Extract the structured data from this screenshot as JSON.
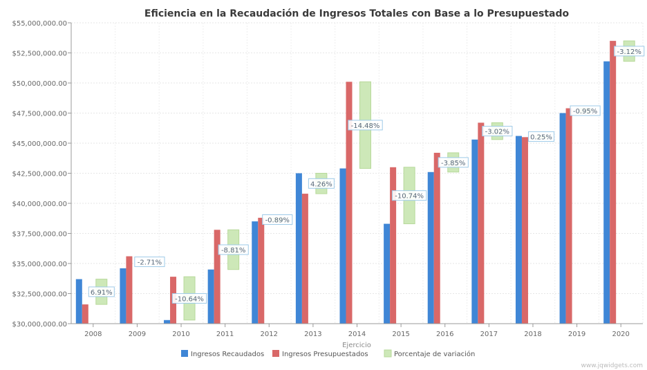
{
  "chart_data": {
    "type": "bar",
    "title": "Eficiencia en la Recaudación de Ingresos Totales con Base a lo Presupuestado",
    "xlabel": "Ejercicio",
    "ylabel": "",
    "ylim": [
      30000000,
      55000000
    ],
    "yticks": [
      "$30,000,000.00",
      "$32,500,000.00",
      "$35,000,000.00",
      "$37,500,000.00",
      "$40,000,000.00",
      "$42,500,000.00",
      "$45,000,000.00",
      "$47,500,000.00",
      "$50,000,000.00",
      "$52,500,000.00",
      "$55,000,000.00"
    ],
    "grid": true,
    "legend_position": "bottom",
    "categories": [
      "2008",
      "2009",
      "2010",
      "2011",
      "2012",
      "2013",
      "2014",
      "2015",
      "2016",
      "2017",
      "2018",
      "2019",
      "2020"
    ],
    "series": [
      {
        "name": "Ingresos Recaudados",
        "color": "#3f86d6",
        "values": [
          33700000,
          34600000,
          30300000,
          34500000,
          38500000,
          42500000,
          42900000,
          38300000,
          42600000,
          45300000,
          45600000,
          47500000,
          51800000
        ]
      },
      {
        "name": "Ingresos Presupuestados",
        "color": "#d96868",
        "values": [
          31600000,
          35600000,
          33900000,
          37800000,
          38800000,
          40800000,
          50100000,
          43000000,
          44200000,
          46700000,
          45500000,
          47900000,
          53500000
        ]
      },
      {
        "name": "Porcentaje de variación",
        "color": "#cde8b8",
        "type": "floating-bar",
        "ranges": [
          [
            31600000,
            33700000
          ],
          null,
          [
            30300000,
            33900000
          ],
          [
            34500000,
            37800000
          ],
          [
            38500000,
            38800000
          ],
          [
            40800000,
            42500000
          ],
          [
            42900000,
            50100000
          ],
          [
            38300000,
            43000000
          ],
          [
            42600000,
            44200000
          ],
          [
            45300000,
            46700000
          ],
          [
            45500000,
            45600000
          ],
          [
            47500000,
            47900000
          ],
          [
            51800000,
            53500000
          ]
        ],
        "labels": [
          "6.91%",
          "-2.71%",
          "-10.64%",
          "-8.81%",
          "-0.89%",
          "4.26%",
          "-14.48%",
          "-10.74%",
          "-3.85%",
          "-3.02%",
          "0.25%",
          "-0.95%",
          "-3.12%"
        ]
      }
    ],
    "watermark": "www.jqwidgets.com"
  }
}
